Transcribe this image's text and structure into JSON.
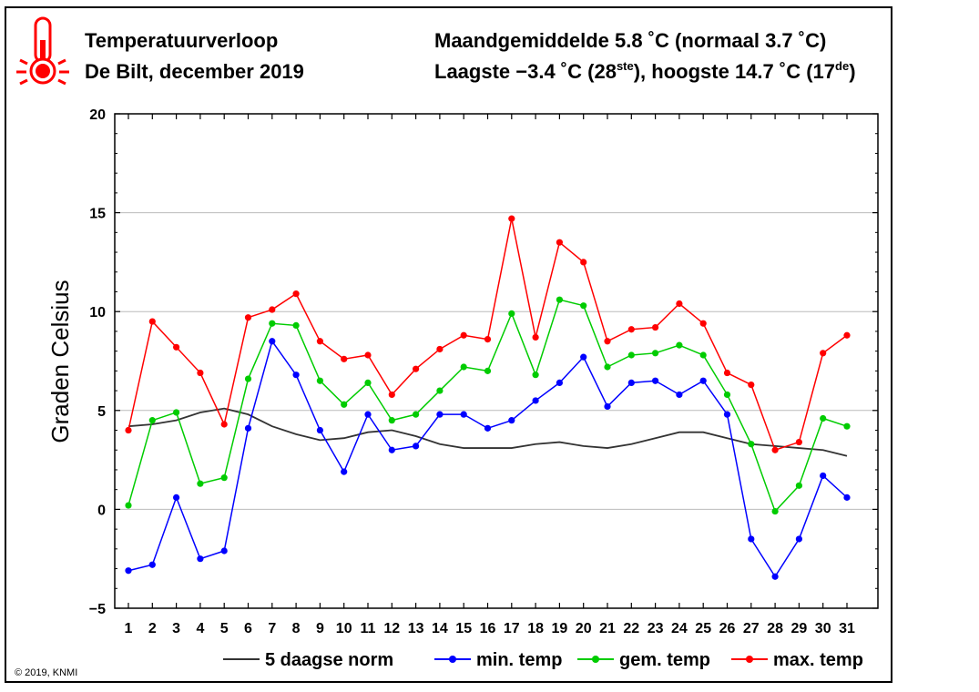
{
  "header": {
    "title": "Temperatuurverloop",
    "subtitle": "De Bilt, december 2019",
    "stats_line1": "Maandgemiddelde 5.8 ˚C (normaal 3.7 ˚C)",
    "stats_line2_a": "Laagste −3.4 ˚C (28",
    "stats_line2_sup1": "ste",
    "stats_line2_b": "), hoogste 14.7 ˚C (17",
    "stats_line2_sup2": "de",
    "stats_line2_c": ")"
  },
  "copyright": "© 2019, KNMI",
  "colors": {
    "norm": "#333333",
    "min": "#0000ff",
    "gem": "#00cc00",
    "max": "#ff0000",
    "icon": "#ff0000",
    "grid": "#bbbbbb"
  },
  "chart_data": {
    "type": "line",
    "ylabel": "Graden Celsius",
    "xlabel": "",
    "ylim": [
      -5,
      20
    ],
    "yticks": [
      -5,
      0,
      5,
      10,
      15,
      20
    ],
    "ytick_labels": [
      "−5",
      "0",
      "5",
      "10",
      "15",
      "20"
    ],
    "x": [
      1,
      2,
      3,
      4,
      5,
      6,
      7,
      8,
      9,
      10,
      11,
      12,
      13,
      14,
      15,
      16,
      17,
      18,
      19,
      20,
      21,
      22,
      23,
      24,
      25,
      26,
      27,
      28,
      29,
      30,
      31
    ],
    "grid": "horizontal",
    "legend_position": "bottom",
    "series": [
      {
        "name": "5 daagse norm",
        "key": "norm",
        "markers": false,
        "values": [
          4.2,
          4.3,
          4.5,
          4.9,
          5.1,
          4.8,
          4.2,
          3.8,
          3.5,
          3.6,
          3.9,
          4.0,
          3.7,
          3.3,
          3.1,
          3.1,
          3.1,
          3.3,
          3.4,
          3.2,
          3.1,
          3.3,
          3.6,
          3.9,
          3.9,
          3.6,
          3.3,
          3.2,
          3.1,
          3.0,
          2.7
        ]
      },
      {
        "name": "min. temp",
        "key": "min",
        "markers": true,
        "values": [
          -3.1,
          -2.8,
          0.6,
          -2.5,
          -2.1,
          4.1,
          8.5,
          6.8,
          4.0,
          1.9,
          4.8,
          3.0,
          3.2,
          4.8,
          4.8,
          4.1,
          4.5,
          5.5,
          6.4,
          7.7,
          5.2,
          6.4,
          6.5,
          5.8,
          6.5,
          4.8,
          -1.5,
          -3.4,
          -1.5,
          1.7,
          0.6
        ]
      },
      {
        "name": "gem. temp",
        "key": "gem",
        "markers": true,
        "values": [
          0.2,
          4.5,
          4.9,
          1.3,
          1.6,
          6.6,
          9.4,
          9.3,
          6.5,
          5.3,
          6.4,
          4.5,
          4.8,
          6.0,
          7.2,
          7.0,
          9.9,
          6.8,
          10.6,
          10.3,
          7.2,
          7.8,
          7.9,
          8.3,
          7.8,
          5.8,
          3.3,
          -0.1,
          1.2,
          4.6,
          4.2
        ]
      },
      {
        "name": "max. temp",
        "key": "max",
        "markers": true,
        "values": [
          4.0,
          9.5,
          8.2,
          6.9,
          4.3,
          9.7,
          10.1,
          10.9,
          8.5,
          7.6,
          7.8,
          5.8,
          7.1,
          8.1,
          8.8,
          8.6,
          14.7,
          8.7,
          13.5,
          12.5,
          8.5,
          9.1,
          9.2,
          10.4,
          9.4,
          6.9,
          6.3,
          3.0,
          3.4,
          7.9,
          8.8
        ]
      }
    ]
  }
}
